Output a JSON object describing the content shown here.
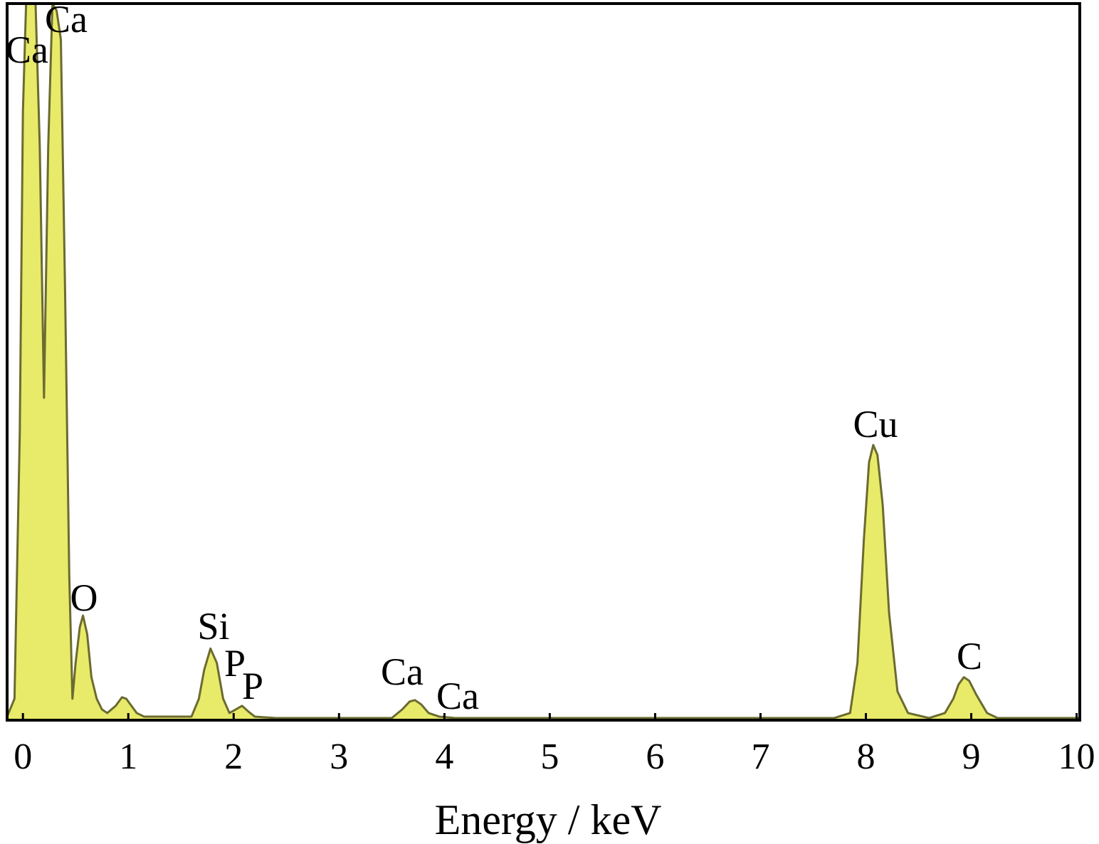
{
  "chart_data": {
    "type": "area",
    "x_label": "Energy / keV",
    "x": [
      -0.15,
      -0.08,
      -0.03,
      0,
      0.03,
      0.07,
      0.12,
      0.16,
      0.2,
      0.24,
      0.28,
      0.32,
      0.36,
      0.4,
      0.44,
      0.47,
      0.5,
      0.54,
      0.57,
      0.61,
      0.65,
      0.7,
      0.75,
      0.8,
      0.88,
      0.94,
      0.98,
      1.03,
      1.08,
      1.15,
      1.3,
      1.6,
      1.67,
      1.72,
      1.78,
      1.84,
      1.9,
      1.96,
      2.02,
      2.08,
      2.14,
      2.2,
      2.4,
      3.0,
      3.5,
      3.6,
      3.67,
      3.72,
      3.78,
      3.85,
      3.95,
      4.1,
      5,
      6,
      7,
      7.7,
      7.85,
      7.92,
      7.98,
      8.03,
      8.07,
      8.11,
      8.16,
      8.22,
      8.3,
      8.4,
      8.6,
      8.75,
      8.83,
      8.88,
      8.93,
      8.98,
      9.05,
      9.15,
      9.25,
      9.6,
      10.03
    ],
    "values": [
      0.5,
      3,
      40,
      85,
      100,
      100,
      100,
      80,
      45,
      80,
      100,
      99,
      95,
      60,
      20,
      3,
      8,
      13,
      14.6,
      12,
      6,
      3,
      1.5,
      1,
      2,
      3.2,
      3,
      2,
      1,
      0.5,
      0.5,
      0.5,
      3,
      7,
      10,
      8,
      3,
      1,
      1.5,
      2,
      1.2,
      0.5,
      0.3,
      0.3,
      0.3,
      1.5,
      2.6,
      2.8,
      2.2,
      1,
      0.5,
      0.3,
      0.3,
      0.3,
      0.3,
      0.3,
      1,
      8,
      25,
      36,
      38.4,
      37,
      30,
      15,
      4,
      1,
      0.3,
      1,
      3,
      5,
      6,
      5.5,
      3.5,
      1,
      0.3,
      0.3,
      0.3
    ],
    "color": "#e8ea6a",
    "edge_color": "#6b6b30",
    "xlim": [
      -0.15,
      10.03
    ],
    "ylim": [
      0,
      100
    ],
    "xticks": [
      0,
      1,
      2,
      3,
      4,
      5,
      6,
      7,
      8,
      9,
      10
    ],
    "annotations": [
      "Ca",
      "Ca",
      "O",
      "Si",
      "P",
      "P",
      "Ca",
      "Ca",
      "Cu",
      "C"
    ]
  }
}
